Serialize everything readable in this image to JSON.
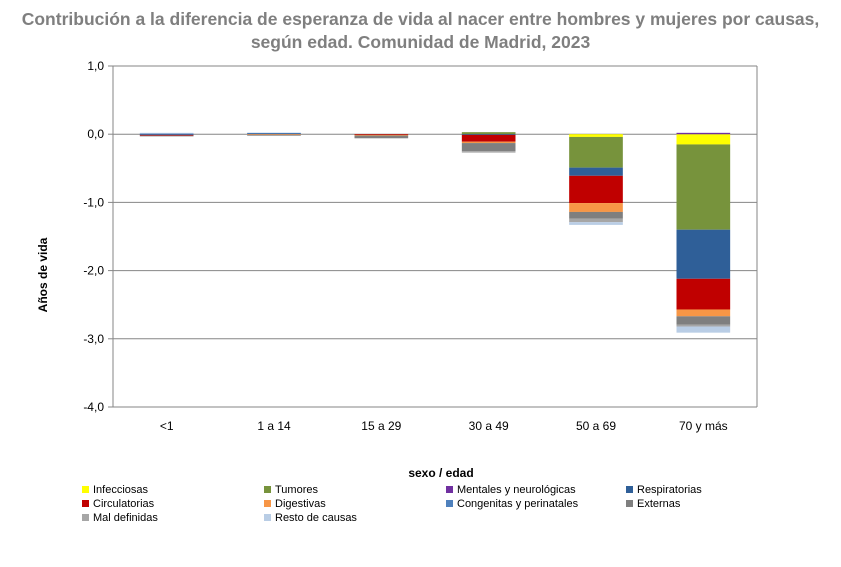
{
  "chart_data": {
    "type": "bar",
    "stacked": true,
    "title": "Contribución a la diferencia de esperanza de vida al nacer entre hombres y mujeres por causas, según edad. Comunidad de Madrid, 2023",
    "xlabel": "sexo / edad",
    "ylabel": "Años de vida",
    "ylim": [
      -4.0,
      1.0
    ],
    "yticks": [
      "1,0",
      "0,0",
      "-1,0",
      "-2,0",
      "-3,0",
      "-4,0"
    ],
    "ytick_values": [
      1.0,
      0.0,
      -1.0,
      -2.0,
      -3.0,
      -4.0
    ],
    "grid": true,
    "legend_position": "bottom",
    "categories": [
      "<1",
      "1 a 14",
      "15 a 29",
      "30 a 49",
      "50 a 69",
      "70 y más"
    ],
    "series": [
      {
        "name": "Infecciosas",
        "color": "#ffff00",
        "values": [
          0,
          0,
          0,
          0,
          -0.04,
          -0.15
        ]
      },
      {
        "name": "Tumores",
        "color": "#77933c",
        "values": [
          0,
          0,
          0,
          0.03,
          -0.45,
          -1.25
        ]
      },
      {
        "name": "Mentales y neurológicas",
        "color": "#7030a0",
        "values": [
          0,
          0,
          0,
          0,
          0,
          0.02
        ]
      },
      {
        "name": "Respiratorias",
        "color": "#2f5f98",
        "values": [
          -0.01,
          0.01,
          0,
          -0.01,
          -0.12,
          -0.72
        ]
      },
      {
        "name": "Circulatorias",
        "color": "#c00000",
        "values": [
          -0.01,
          0,
          -0.01,
          -0.1,
          -0.4,
          -0.45
        ]
      },
      {
        "name": "Digestivas",
        "color": "#f79646",
        "values": [
          0,
          -0.01,
          -0.01,
          -0.02,
          -0.13,
          -0.1
        ]
      },
      {
        "name": "Congenitas y perinatales",
        "color": "#4f81bd",
        "values": [
          0.01,
          0.01,
          0,
          0,
          0,
          0
        ]
      },
      {
        "name": "Externas",
        "color": "#7f7f7f",
        "values": [
          -0.01,
          -0.01,
          -0.04,
          -0.12,
          -0.1,
          -0.12
        ]
      },
      {
        "name": "Mal definidas",
        "color": "#a6a6a6",
        "values": [
          0,
          0,
          0,
          -0.02,
          -0.05,
          -0.03
        ]
      },
      {
        "name": "Resto de causas",
        "color": "#b9cde5",
        "values": [
          0.01,
          0,
          0,
          0,
          -0.04,
          -0.09
        ]
      }
    ]
  }
}
